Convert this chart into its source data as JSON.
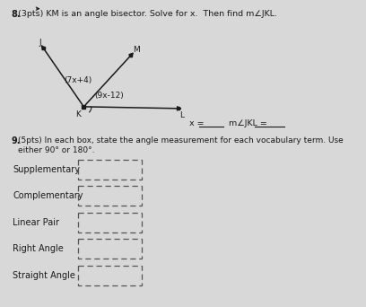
{
  "title8": "8. (3pts) KM is an angle bisector. Solve for x.  Then find m∠JKL.",
  "title9": "9. (5pts) In each box, state the angle measurement for each vocabulary term. Use either 90° or 180°.",
  "angle_label1": "(7x+4)",
  "angle_label2": "(9x-12)",
  "vocab_terms": [
    "Supplementary",
    "Complementary",
    "Linear Pair",
    "Right Angle",
    "Straight Angle"
  ],
  "bg_color": "#d8d8d8",
  "text_color": "#1a1a1a"
}
